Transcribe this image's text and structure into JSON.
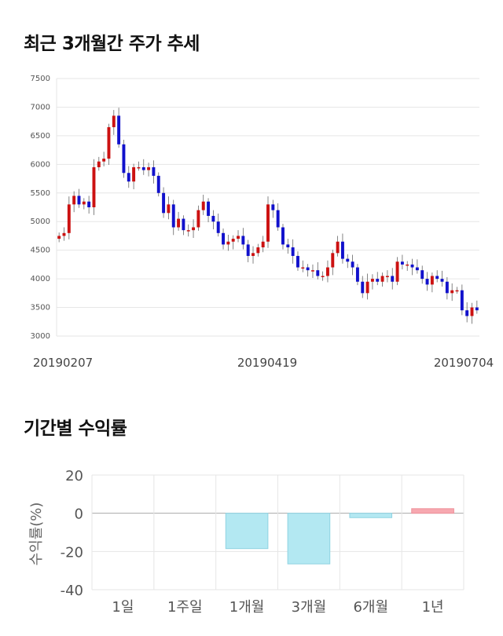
{
  "sections": {
    "price_trend_title": "최근 3개월간 주가 추세",
    "returns_title": "기간별 수익률"
  },
  "colors": {
    "up": "#cc1111",
    "down": "#1111cc",
    "positive_bar": "#f7a8b0",
    "negative_bar": "#b3e8f2",
    "grid": "#e6e6e6"
  },
  "chart_data": [
    {
      "type": "candlestick",
      "title": "최근 3개월간 주가 추세",
      "ylim": [
        3000,
        7500
      ],
      "y_ticks": [
        3000,
        3500,
        4000,
        4500,
        5000,
        5500,
        6000,
        6500,
        7000,
        7500
      ],
      "x_tick_labels": [
        "20190207",
        "20190419",
        "20190704"
      ],
      "grid": true,
      "close_series": [
        4750,
        4800,
        5300,
        5450,
        5300,
        5350,
        5250,
        5950,
        6050,
        6100,
        6650,
        6850,
        6350,
        5850,
        5700,
        5950,
        5950,
        5900,
        5950,
        5800,
        5500,
        5150,
        5300,
        4900,
        5050,
        4850,
        4850,
        4900,
        5200,
        5350,
        5100,
        5000,
        4800,
        4600,
        4650,
        4700,
        4750,
        4600,
        4400,
        4450,
        4550,
        4650,
        5300,
        5200,
        4900,
        4600,
        4550,
        4400,
        4200,
        4200,
        4150,
        4150,
        4050,
        4050,
        4200,
        4450,
        4650,
        4350,
        4300,
        4200,
        3950,
        3750,
        3950,
        4000,
        3950,
        4050,
        4050,
        3950,
        4300,
        4250,
        4250,
        4200,
        4150,
        4000,
        3900,
        4050,
        4000,
        3950,
        3750,
        3800,
        3800,
        3450,
        3350,
        3500,
        3450
      ]
    },
    {
      "type": "bar",
      "title": "기간별 수익률",
      "categories": [
        "1일",
        "1주일",
        "1개월",
        "3개월",
        "6개월",
        "1년"
      ],
      "values": [
        0,
        0,
        -18.5,
        -26.5,
        -2.3,
        2.4
      ],
      "ylabel": "수익률(%)",
      "ylim": [
        -40,
        20
      ],
      "y_ticks": [
        20,
        0,
        -20,
        -40
      ],
      "grid": true
    }
  ]
}
